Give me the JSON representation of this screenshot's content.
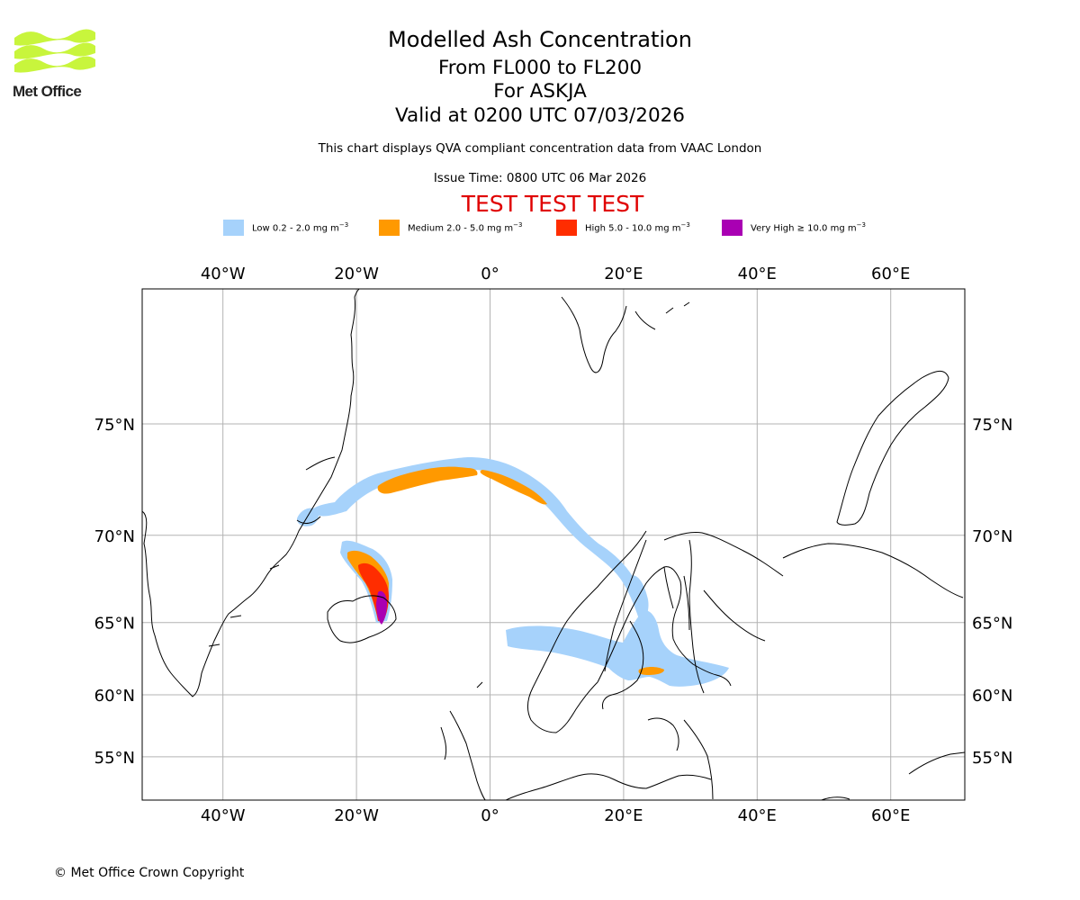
{
  "header": {
    "logo_text": "Met Office",
    "title": "Modelled Ash Concentration",
    "levels": "From FL000 to FL200",
    "volcano": "For ASKJA",
    "valid": "Valid at 0200 UTC 07/03/2026",
    "description": "This chart displays QVA compliant concentration data from VAAC London",
    "issue_time": "Issue Time: 0800 UTC 06 Mar 2026",
    "test_banner": "TEST TEST TEST"
  },
  "legend": [
    {
      "label": "Low 0.2 - 2.0 mg m",
      "unit_exp": "−3",
      "color": "#a6d2fb"
    },
    {
      "label": "Medium 2.0 - 5.0 mg m",
      "unit_exp": "−3",
      "color": "#ff9900"
    },
    {
      "label": "High 5.0 - 10.0 mg m",
      "unit_exp": "−3",
      "color": "#ff2d00"
    },
    {
      "label": "Very High  ≥  10.0 mg m",
      "unit_exp": "−3",
      "color": "#a900b3"
    }
  ],
  "map": {
    "lon_labels": [
      "40°W",
      "20°W",
      "0°",
      "20°E",
      "40°E",
      "60°E"
    ],
    "lat_labels": [
      "75°N",
      "70°N",
      "65°N",
      "60°N",
      "55°N"
    ],
    "lon_values": [
      -40,
      -20,
      0,
      20,
      40,
      60
    ],
    "lat_values": [
      75,
      70,
      65,
      60,
      55
    ]
  },
  "footer": {
    "copyright": "© Met Office Crown Copyright"
  },
  "colors": {
    "logo": "#c8f53c",
    "test": "#e00000",
    "grid": "#b3b3b3"
  }
}
